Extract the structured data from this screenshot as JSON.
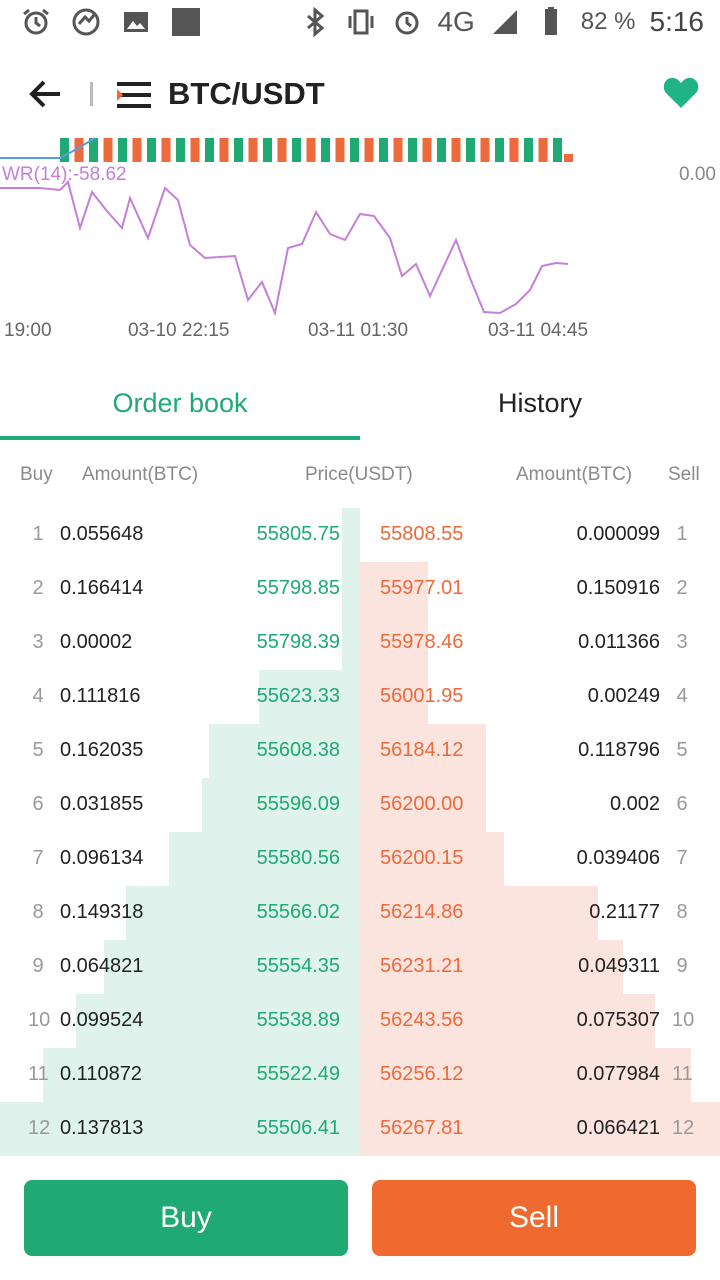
{
  "status_bar": {
    "battery_percent": "82 %",
    "time": "5:16",
    "network": "4G"
  },
  "header": {
    "pair": "BTC/USDT",
    "favorite_color": "#20b386"
  },
  "chart": {
    "indicator_label": "WR(14):-58.62",
    "right_value": "0.00",
    "x_ticks": [
      "19:00",
      "03-10 22:15",
      "03-11 01:30",
      "03-11 04:45"
    ]
  },
  "tabs": {
    "order_book": "Order book",
    "history": "History"
  },
  "columns": {
    "buy": "Buy",
    "amount_left": "Amount(BTC)",
    "price": "Price(USDT)",
    "amount_right": "Amount(BTC)",
    "sell": "Sell"
  },
  "rows": [
    {
      "idx": "1",
      "buy_amount": "0.055648",
      "bid": "55805.75",
      "ask": "55808.55",
      "sell_amount": "0.000099",
      "bid_depth": 0.05,
      "ask_depth": 0.0
    },
    {
      "idx": "2",
      "buy_amount": "0.166414",
      "bid": "55798.85",
      "ask": "55977.01",
      "sell_amount": "0.150916",
      "bid_depth": 0.05,
      "ask_depth": 0.19
    },
    {
      "idx": "3",
      "buy_amount": "0.00002",
      "bid": "55798.39",
      "ask": "55978.46",
      "sell_amount": "0.011366",
      "bid_depth": 0.05,
      "ask_depth": 0.19
    },
    {
      "idx": "4",
      "buy_amount": "0.111816",
      "bid": "55623.33",
      "ask": "56001.95",
      "sell_amount": "0.00249",
      "bid_depth": 0.28,
      "ask_depth": 0.19
    },
    {
      "idx": "5",
      "buy_amount": "0.162035",
      "bid": "55608.38",
      "ask": "56184.12",
      "sell_amount": "0.118796",
      "bid_depth": 0.42,
      "ask_depth": 0.35
    },
    {
      "idx": "6",
      "buy_amount": "0.031855",
      "bid": "55596.09",
      "ask": "56200.00",
      "sell_amount": "0.002",
      "bid_depth": 0.44,
      "ask_depth": 0.35
    },
    {
      "idx": "7",
      "buy_amount": "0.096134",
      "bid": "55580.56",
      "ask": "56200.15",
      "sell_amount": "0.039406",
      "bid_depth": 0.53,
      "ask_depth": 0.4
    },
    {
      "idx": "8",
      "buy_amount": "0.149318",
      "bid": "55566.02",
      "ask": "56214.86",
      "sell_amount": "0.21177",
      "bid_depth": 0.65,
      "ask_depth": 0.66
    },
    {
      "idx": "9",
      "buy_amount": "0.064821",
      "bid": "55554.35",
      "ask": "56231.21",
      "sell_amount": "0.049311",
      "bid_depth": 0.71,
      "ask_depth": 0.73
    },
    {
      "idx": "10",
      "buy_amount": "0.099524",
      "bid": "55538.89",
      "ask": "56243.56",
      "sell_amount": "0.075307",
      "bid_depth": 0.79,
      "ask_depth": 0.82
    },
    {
      "idx": "11",
      "buy_amount": "0.110872",
      "bid": "55522.49",
      "ask": "56256.12",
      "sell_amount": "0.077984",
      "bid_depth": 0.88,
      "ask_depth": 0.92
    },
    {
      "idx": "12",
      "buy_amount": "0.137813",
      "bid": "55506.41",
      "ask": "56267.81",
      "sell_amount": "0.066421",
      "bid_depth": 1.0,
      "ask_depth": 1.0
    }
  ],
  "actions": {
    "buy": "Buy",
    "sell": "Sell"
  }
}
